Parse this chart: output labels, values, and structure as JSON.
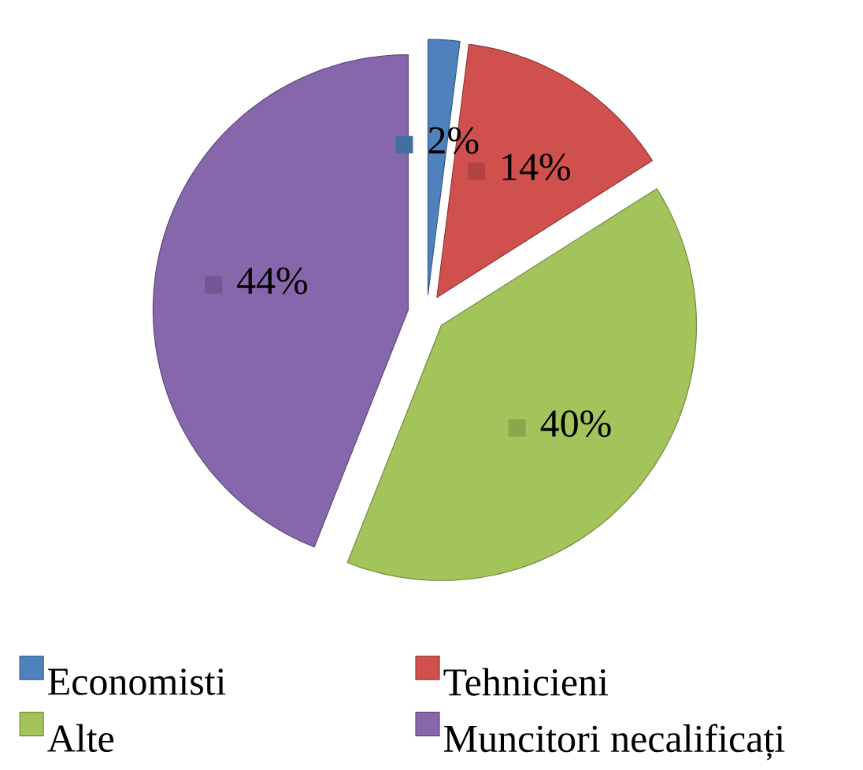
{
  "chart_data": {
    "type": "pie",
    "categories": [
      "Economisti",
      "Tehnicieni",
      "Alte",
      "Muncitori necalificați"
    ],
    "values": [
      2,
      14,
      40,
      44
    ],
    "colors": [
      "#4f81bd",
      "#d0504d",
      "#a3c45a",
      "#8767ac"
    ],
    "value_labels": [
      "2%",
      "14%",
      "40%",
      "44%"
    ],
    "legend": "bottom"
  }
}
